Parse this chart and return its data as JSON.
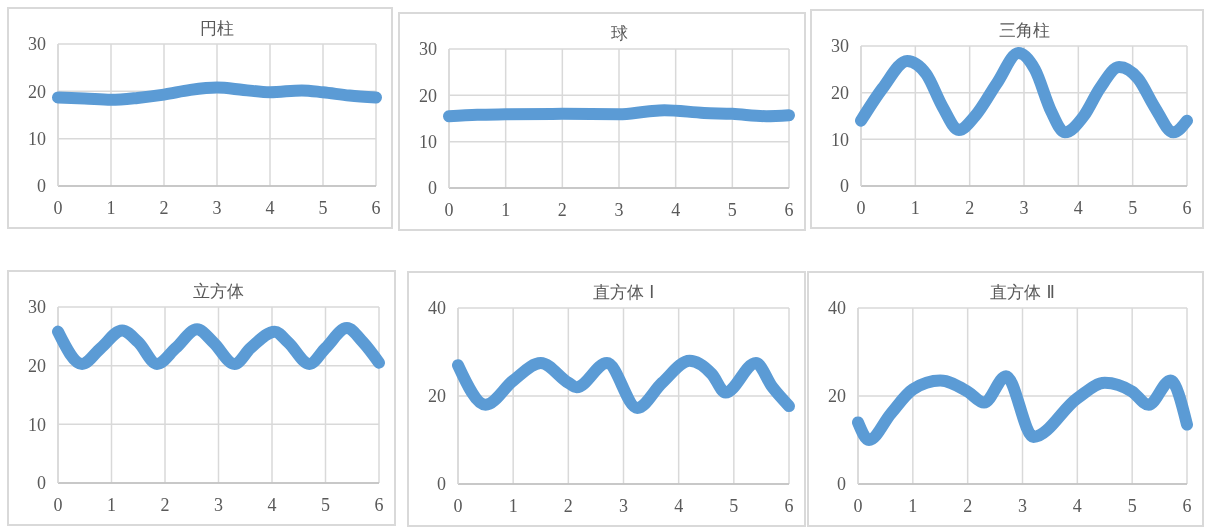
{
  "chart_data": [
    {
      "type": "line",
      "title": "円柱",
      "xlim": [
        0,
        6
      ],
      "xticks": [
        0,
        1,
        2,
        3,
        4,
        5,
        6
      ],
      "ylim": [
        0,
        30
      ],
      "yticks": [
        0,
        10,
        20,
        30
      ],
      "grid": true,
      "line_style": "solid",
      "series": [
        {
          "color": "#5b9bd5",
          "x": [
            0,
            0.5,
            1,
            1.5,
            2,
            2.5,
            3,
            3.5,
            4,
            4.6,
            5,
            5.5,
            6
          ],
          "values": [
            18.7,
            18.5,
            18.2,
            18.6,
            19.3,
            20.3,
            20.8,
            20.3,
            19.8,
            20.2,
            19.8,
            19.1,
            18.7
          ]
        }
      ]
    },
    {
      "type": "line",
      "title": "球",
      "xlim": [
        0,
        6
      ],
      "xticks": [
        0,
        1,
        2,
        3,
        4,
        5,
        6
      ],
      "ylim": [
        0,
        30
      ],
      "yticks": [
        0,
        10,
        20,
        30
      ],
      "grid": true,
      "line_style": "solid",
      "series": [
        {
          "color": "#5b9bd5",
          "x": [
            0,
            0.5,
            1,
            2,
            3,
            3.5,
            3.8,
            4.5,
            5,
            5.6,
            6
          ],
          "values": [
            15.5,
            15.8,
            15.9,
            16,
            15.9,
            16.5,
            16.8,
            16.2,
            16,
            15.5,
            15.7
          ]
        }
      ]
    },
    {
      "type": "line",
      "title": "三角柱",
      "xlim": [
        0,
        6
      ],
      "xticks": [
        0,
        1,
        2,
        3,
        4,
        5,
        6
      ],
      "ylim": [
        0,
        30
      ],
      "yticks": [
        0,
        10,
        20,
        30
      ],
      "grid": true,
      "line_style": "solid",
      "series": [
        {
          "color": "#5b9bd5",
          "x": [
            0,
            0.4,
            0.85,
            1.2,
            1.5,
            1.8,
            2.1,
            2.5,
            2.9,
            3.2,
            3.5,
            3.75,
            4.1,
            4.4,
            4.75,
            5.1,
            5.4,
            5.75,
            6
          ],
          "values": [
            14,
            21,
            26.8,
            24,
            17,
            12,
            15,
            22,
            28.5,
            25,
            16,
            11.5,
            15,
            21,
            25.5,
            23,
            17,
            11.5,
            14
          ]
        }
      ]
    },
    {
      "type": "line",
      "title": "立方体",
      "xlim": [
        0,
        6
      ],
      "xticks": [
        0,
        1,
        2,
        3,
        4,
        5,
        6
      ],
      "ylim": [
        0,
        30
      ],
      "yticks": [
        0,
        10,
        20,
        30
      ],
      "grid": true,
      "line_style": "solid",
      "series": [
        {
          "color": "#5b9bd5",
          "x": [
            0,
            0.45,
            0.8,
            1.2,
            1.5,
            1.85,
            2.2,
            2.6,
            2.9,
            3.3,
            3.6,
            4.05,
            4.3,
            4.7,
            5,
            5.4,
            5.7,
            6
          ],
          "values": [
            25.8,
            20.3,
            23,
            26,
            24,
            20.3,
            23,
            26.2,
            24,
            20.3,
            23,
            25.8,
            24,
            20.3,
            23,
            26.4,
            24,
            20.5
          ]
        }
      ]
    },
    {
      "type": "line",
      "title": "直方体 Ⅰ",
      "xlim": [
        0,
        6
      ],
      "xticks": [
        0,
        1,
        2,
        3,
        4,
        5,
        6
      ],
      "ylim": [
        0,
        40
      ],
      "yticks": [
        0,
        20,
        40
      ],
      "grid": true,
      "line_style": "solid",
      "series": [
        {
          "color": "#5b9bd5",
          "x": [
            0,
            0.5,
            1,
            1.5,
            2,
            2.15,
            2.7,
            3.25,
            3.7,
            4.2,
            4.6,
            4.85,
            5.4,
            5.7,
            6
          ],
          "values": [
            27,
            18,
            23.5,
            27.5,
            23,
            22,
            27.5,
            17.3,
            23,
            28,
            25,
            20.8,
            27.5,
            22,
            17.7
          ]
        }
      ]
    },
    {
      "type": "line",
      "title": "直方体 Ⅱ",
      "xlim": [
        0,
        6
      ],
      "xticks": [
        0,
        1,
        2,
        3,
        4,
        5,
        6
      ],
      "ylim": [
        0,
        40
      ],
      "yticks": [
        0,
        20,
        40
      ],
      "grid": true,
      "line_style": "solid",
      "series": [
        {
          "color": "#5b9bd5",
          "x": [
            0,
            0.2,
            0.6,
            1,
            1.5,
            2,
            2.3,
            2.7,
            3.2,
            4,
            4.5,
            5,
            5.3,
            5.7,
            6
          ],
          "values": [
            14,
            10,
            16,
            21.5,
            23.5,
            21,
            18.5,
            24.5,
            10.7,
            19.5,
            23,
            21,
            18,
            23.5,
            13.5
          ]
        }
      ]
    }
  ]
}
